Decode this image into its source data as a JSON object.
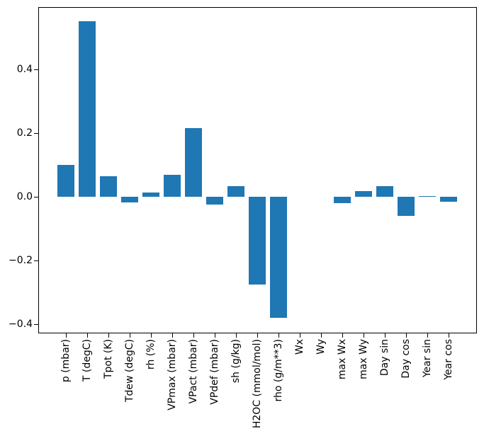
{
  "colors": {
    "bar": "#1f77b4",
    "spine": "#000000",
    "text": "#000000",
    "background": "#ffffff"
  },
  "chart_data": {
    "type": "bar",
    "title": "",
    "xlabel": "",
    "ylabel": "",
    "grid": false,
    "legend": null,
    "categories": [
      "p (mbar)",
      "T (degC)",
      "Tpot (K)",
      "Tdew (degC)",
      "rh (%)",
      "VPmax (mbar)",
      "VPact (mbar)",
      "VPdef (mbar)",
      "sh (g/kg)",
      "H2OC (mmol/mol)",
      "rho (g/m**3)",
      "Wx",
      "Wy",
      "max Wx",
      "max Wy",
      "Day sin",
      "Day cos",
      "Year sin",
      "Year cos"
    ],
    "values": [
      0.1,
      0.551,
      0.065,
      -0.018,
      0.013,
      0.068,
      0.215,
      -0.025,
      0.034,
      -0.276,
      -0.38,
      0.0,
      0.0,
      -0.02,
      0.017,
      0.034,
      -0.06,
      0.003,
      -0.016
    ],
    "ylim": [
      -0.43,
      0.594
    ],
    "yticks": [
      {
        "label": "0.4",
        "value": 0.4
      },
      {
        "label": "0.2",
        "value": 0.2
      },
      {
        "label": "0.0",
        "value": 0.0
      },
      {
        "label": "−0.2",
        "value": -0.2
      },
      {
        "label": "−0.4",
        "value": -0.4
      }
    ]
  }
}
